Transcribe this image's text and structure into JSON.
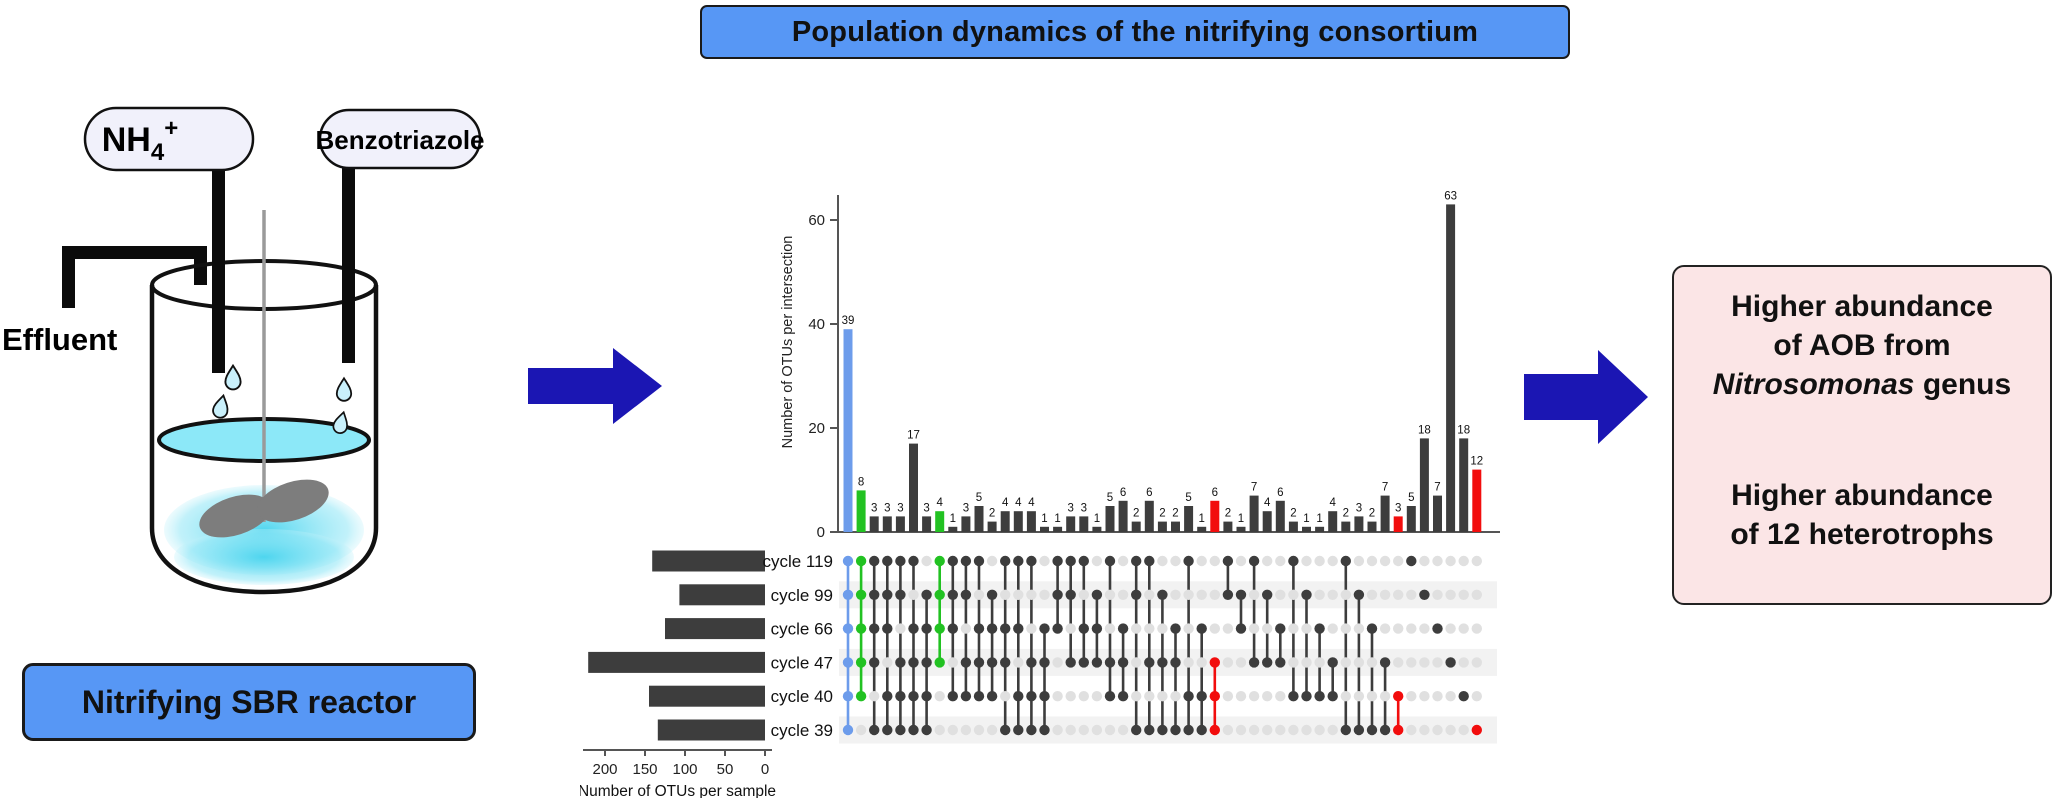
{
  "title_banner": "Population dynamics of the nitrifying consortium",
  "reactor": {
    "nh4": {
      "base": "NH",
      "sub": "4",
      "sup": "+"
    },
    "benzotriazole_label": "Benzotriazole",
    "effluent_label": "Effluent",
    "caption": "Nitrifying SBR reactor"
  },
  "conclusion_box": {
    "block1_line1": "Higher abundance",
    "block1_line2": "of AOB from",
    "block1_line3_italic": "Nitrosomonas",
    "block1_line3_rest": " genus",
    "block2_line1": "Higher abundance",
    "block2_line2": "of 12 heterotrophs"
  },
  "chart_data": {
    "type": "upset",
    "ylabel": "Number of OTUs per intersection",
    "set_size_label": "Number of OTUs per sample",
    "y_ticks": [
      0,
      20,
      40,
      60
    ],
    "ylim": [
      0,
      70
    ],
    "set_size_ticks": [
      200,
      150,
      100,
      50,
      0
    ],
    "sets": [
      "cycle 119",
      "cycle 99",
      "cycle 66",
      "cycle 47",
      "cycle 40",
      "cycle 39"
    ],
    "set_sizes": [
      141,
      107,
      125,
      221,
      145,
      134
    ],
    "colors": {
      "default": "#3d3d3d",
      "blue": "#6d9ceb",
      "green": "#22c222",
      "red": "#f20d0d",
      "empty_dot": "#e0e0e0",
      "stripe": "#f2f2f2"
    },
    "intersections": [
      {
        "size": 39,
        "sets": [
          0,
          1,
          2,
          3,
          4,
          5
        ],
        "color": "blue"
      },
      {
        "size": 8,
        "sets": [
          0,
          1,
          2,
          3,
          4
        ],
        "color": "green"
      },
      {
        "size": 3,
        "sets": [
          0,
          1,
          2,
          3,
          5
        ]
      },
      {
        "size": 3,
        "sets": [
          0,
          1,
          2,
          4,
          5
        ]
      },
      {
        "size": 3,
        "sets": [
          0,
          1,
          3,
          4,
          5
        ]
      },
      {
        "size": 17,
        "sets": [
          0,
          2,
          3,
          4,
          5
        ]
      },
      {
        "size": 3,
        "sets": [
          1,
          2,
          3,
          4,
          5
        ]
      },
      {
        "size": 4,
        "sets": [
          0,
          1,
          2,
          3
        ],
        "color": "green"
      },
      {
        "size": 1,
        "sets": [
          0,
          1,
          2,
          4
        ]
      },
      {
        "size": 3,
        "sets": [
          0,
          1,
          3,
          4
        ]
      },
      {
        "size": 5,
        "sets": [
          0,
          2,
          3,
          4
        ]
      },
      {
        "size": 2,
        "sets": [
          1,
          2,
          3,
          4
        ]
      },
      {
        "size": 4,
        "sets": [
          0,
          2,
          3,
          5
        ]
      },
      {
        "size": 4,
        "sets": [
          0,
          2,
          4,
          5
        ]
      },
      {
        "size": 4,
        "sets": [
          0,
          3,
          4,
          5
        ]
      },
      {
        "size": 1,
        "sets": [
          2,
          3,
          4,
          5
        ]
      },
      {
        "size": 1,
        "sets": [
          0,
          1,
          2
        ]
      },
      {
        "size": 3,
        "sets": [
          0,
          1,
          3
        ]
      },
      {
        "size": 3,
        "sets": [
          0,
          2,
          3
        ]
      },
      {
        "size": 1,
        "sets": [
          1,
          2,
          3
        ]
      },
      {
        "size": 5,
        "sets": [
          0,
          3,
          4
        ]
      },
      {
        "size": 6,
        "sets": [
          2,
          3,
          4
        ]
      },
      {
        "size": 2,
        "sets": [
          0,
          1,
          5
        ]
      },
      {
        "size": 6,
        "sets": [
          0,
          3,
          5
        ]
      },
      {
        "size": 2,
        "sets": [
          1,
          3,
          5
        ]
      },
      {
        "size": 2,
        "sets": [
          2,
          3,
          5
        ]
      },
      {
        "size": 5,
        "sets": [
          0,
          4,
          5
        ]
      },
      {
        "size": 1,
        "sets": [
          2,
          4,
          5
        ]
      },
      {
        "size": 6,
        "sets": [
          3,
          4,
          5
        ],
        "color": "red"
      },
      {
        "size": 2,
        "sets": [
          0,
          1
        ]
      },
      {
        "size": 1,
        "sets": [
          1,
          2
        ]
      },
      {
        "size": 7,
        "sets": [
          0,
          3
        ]
      },
      {
        "size": 4,
        "sets": [
          1,
          3
        ]
      },
      {
        "size": 6,
        "sets": [
          2,
          3
        ]
      },
      {
        "size": 2,
        "sets": [
          0,
          4
        ]
      },
      {
        "size": 1,
        "sets": [
          1,
          4
        ]
      },
      {
        "size": 1,
        "sets": [
          2,
          4
        ]
      },
      {
        "size": 4,
        "sets": [
          3,
          4
        ]
      },
      {
        "size": 2,
        "sets": [
          0,
          5
        ]
      },
      {
        "size": 3,
        "sets": [
          1,
          5
        ]
      },
      {
        "size": 2,
        "sets": [
          2,
          5
        ]
      },
      {
        "size": 7,
        "sets": [
          3,
          5
        ]
      },
      {
        "size": 3,
        "sets": [
          4,
          5
        ],
        "color": "red"
      },
      {
        "size": 5,
        "sets": [
          0
        ]
      },
      {
        "size": 18,
        "sets": [
          1
        ]
      },
      {
        "size": 7,
        "sets": [
          2
        ]
      },
      {
        "size": 63,
        "sets": [
          3
        ]
      },
      {
        "size": 18,
        "sets": [
          4
        ]
      },
      {
        "size": 12,
        "sets": [
          5
        ],
        "color": "red"
      }
    ]
  }
}
